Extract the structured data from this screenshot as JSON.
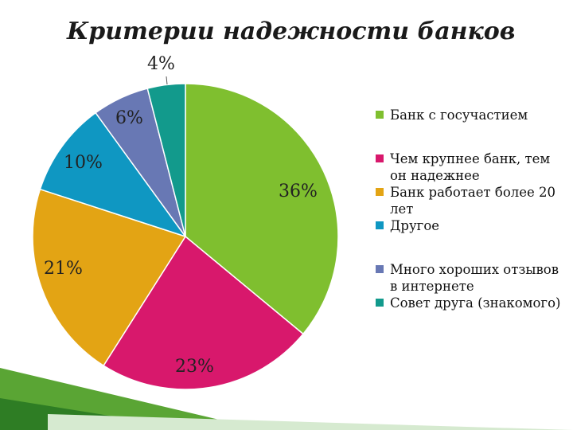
{
  "title": "Критерии надежности банков",
  "chart_data": {
    "type": "pie",
    "title": "Критерии надежности банков",
    "categories": [
      "Банк с госучастием",
      "Чем крупнее банк, тем он надежнее",
      "Банк работает более 20 лет",
      "Другое",
      "Много хороших отзывов в интернете",
      "Совет друга (знакомого)"
    ],
    "values": [
      36,
      23,
      21,
      10,
      6,
      4
    ],
    "data_labels": [
      "36%",
      "23%",
      "21%",
      "10%",
      "6%",
      "4%"
    ],
    "colors": [
      "#7fbf2f",
      "#d8186c",
      "#e3a414",
      "#0f97c2",
      "#6878b4",
      "#129a8c"
    ],
    "legend": "right"
  }
}
